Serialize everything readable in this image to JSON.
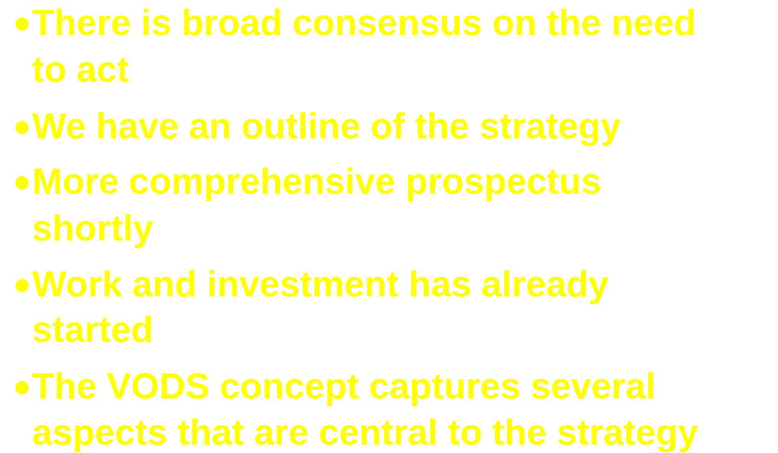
{
  "slide": {
    "text_color": "#ffff00",
    "background_color": "#ffffff",
    "bullet_icon": "filled-circle",
    "bullets": [
      {
        "lines": [
          "There is broad consensus on the need",
          "to act"
        ]
      },
      {
        "lines": [
          "We have an outline of the strategy"
        ]
      },
      {
        "lines": [
          "More  comprehensive prospectus",
          "shortly"
        ]
      },
      {
        "lines": [
          "Work and investment has already",
          "started"
        ]
      },
      {
        "lines": [
          "The VODS concept captures several",
          "aspects that are central to the strategy"
        ]
      }
    ]
  }
}
